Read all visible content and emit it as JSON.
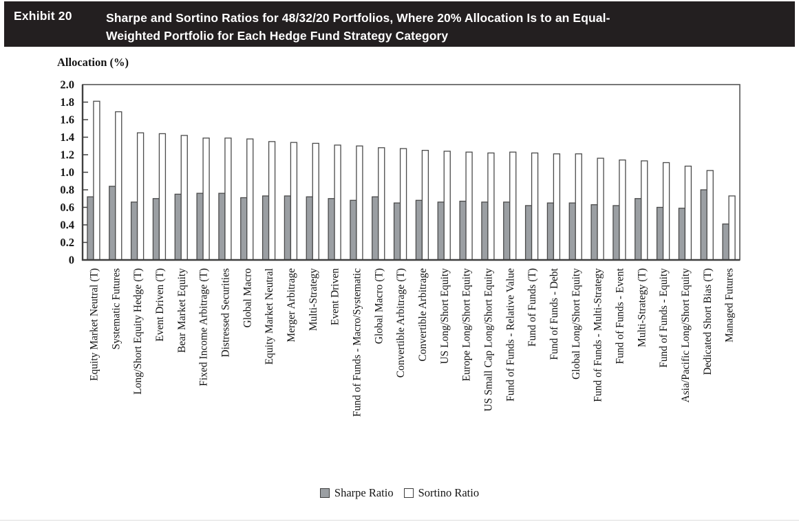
{
  "header": {
    "exhibit_label": "Exhibit 20",
    "title_line1": "Sharpe and Sortino Ratios for 48/32/20 Portfolios, Where 20% Allocation Is to an Equal-",
    "title_line2": "Weighted Portfolio for Each Hedge Fund Strategy Category"
  },
  "chart_data": {
    "type": "bar",
    "title": "Sharpe and Sortino Ratios for 48/32/20 Portfolios, Where 20% Allocation Is to an Equal-Weighted Portfolio for Each Hedge Fund Strategy Category",
    "y_axis_title": "Allocation (%)",
    "xlabel": "",
    "ylabel": "Allocation (%)",
    "ylim": [
      0,
      2.0
    ],
    "y_ticks": [
      "0",
      "0.2",
      "0.4",
      "0.6",
      "0.8",
      "1.0",
      "1.2",
      "1.4",
      "1.6",
      "1.8",
      "2.0"
    ],
    "grid": false,
    "legend_position": "bottom",
    "categories": [
      "Equity Market Neutral (T)",
      "Systematic Futures",
      "Long/Short Equity Hedge (T)",
      "Event Driven (T)",
      "Bear Market Equity",
      "Fixed Income Arbitrage (T)",
      "Distressed Securities",
      "Global Macro",
      "Equity Market Neutral",
      "Merger Arbitrage",
      "Multi-Strategy",
      "Event Driven",
      "Fund of Funds - Macro/Systematic",
      "Global Macro (T)",
      "Convertible Arbitrage (T)",
      "Convertible Arbitrage",
      "US Long/Short Equity",
      "Europe Long/Short Equity",
      "US Small Cap Long/Short Equity",
      "Fund of Funds - Relative Value",
      "Fund of Funds (T)",
      "Fund of Funds - Debt",
      "Global Long/Short Equity",
      "Fund of Funds - Multi-Strategy",
      "Fund of Funds - Event",
      "Multi-Strategy (T)",
      "Fund of Funds - Equity",
      "Asia/Pacific Long/Short Equity",
      "Dedicated Short Bias (T)",
      "Managed Futures"
    ],
    "series": [
      {
        "name": "Sharpe Ratio",
        "color": "#9b9fa3",
        "values": [
          0.72,
          0.84,
          0.66,
          0.7,
          0.75,
          0.76,
          0.76,
          0.71,
          0.73,
          0.73,
          0.72,
          0.7,
          0.68,
          0.72,
          0.65,
          0.68,
          0.66,
          0.67,
          0.66,
          0.66,
          0.62,
          0.65,
          0.65,
          0.63,
          0.62,
          0.7,
          0.6,
          0.59,
          0.8,
          0.41
        ]
      },
      {
        "name": "Sortino Ratio",
        "color": "#ffffff",
        "values": [
          1.81,
          1.69,
          1.45,
          1.44,
          1.42,
          1.39,
          1.39,
          1.38,
          1.35,
          1.34,
          1.33,
          1.31,
          1.3,
          1.28,
          1.27,
          1.25,
          1.24,
          1.23,
          1.22,
          1.23,
          1.22,
          1.21,
          1.21,
          1.16,
          1.14,
          1.13,
          1.11,
          1.07,
          1.02,
          0.73
        ]
      }
    ]
  },
  "colors": {
    "header_bg": "#231f20",
    "header_text": "#ffffff",
    "bar_border": "#4a4a4a",
    "frame": "#555555",
    "axis": "#3f3f3f",
    "text": "#141414"
  }
}
